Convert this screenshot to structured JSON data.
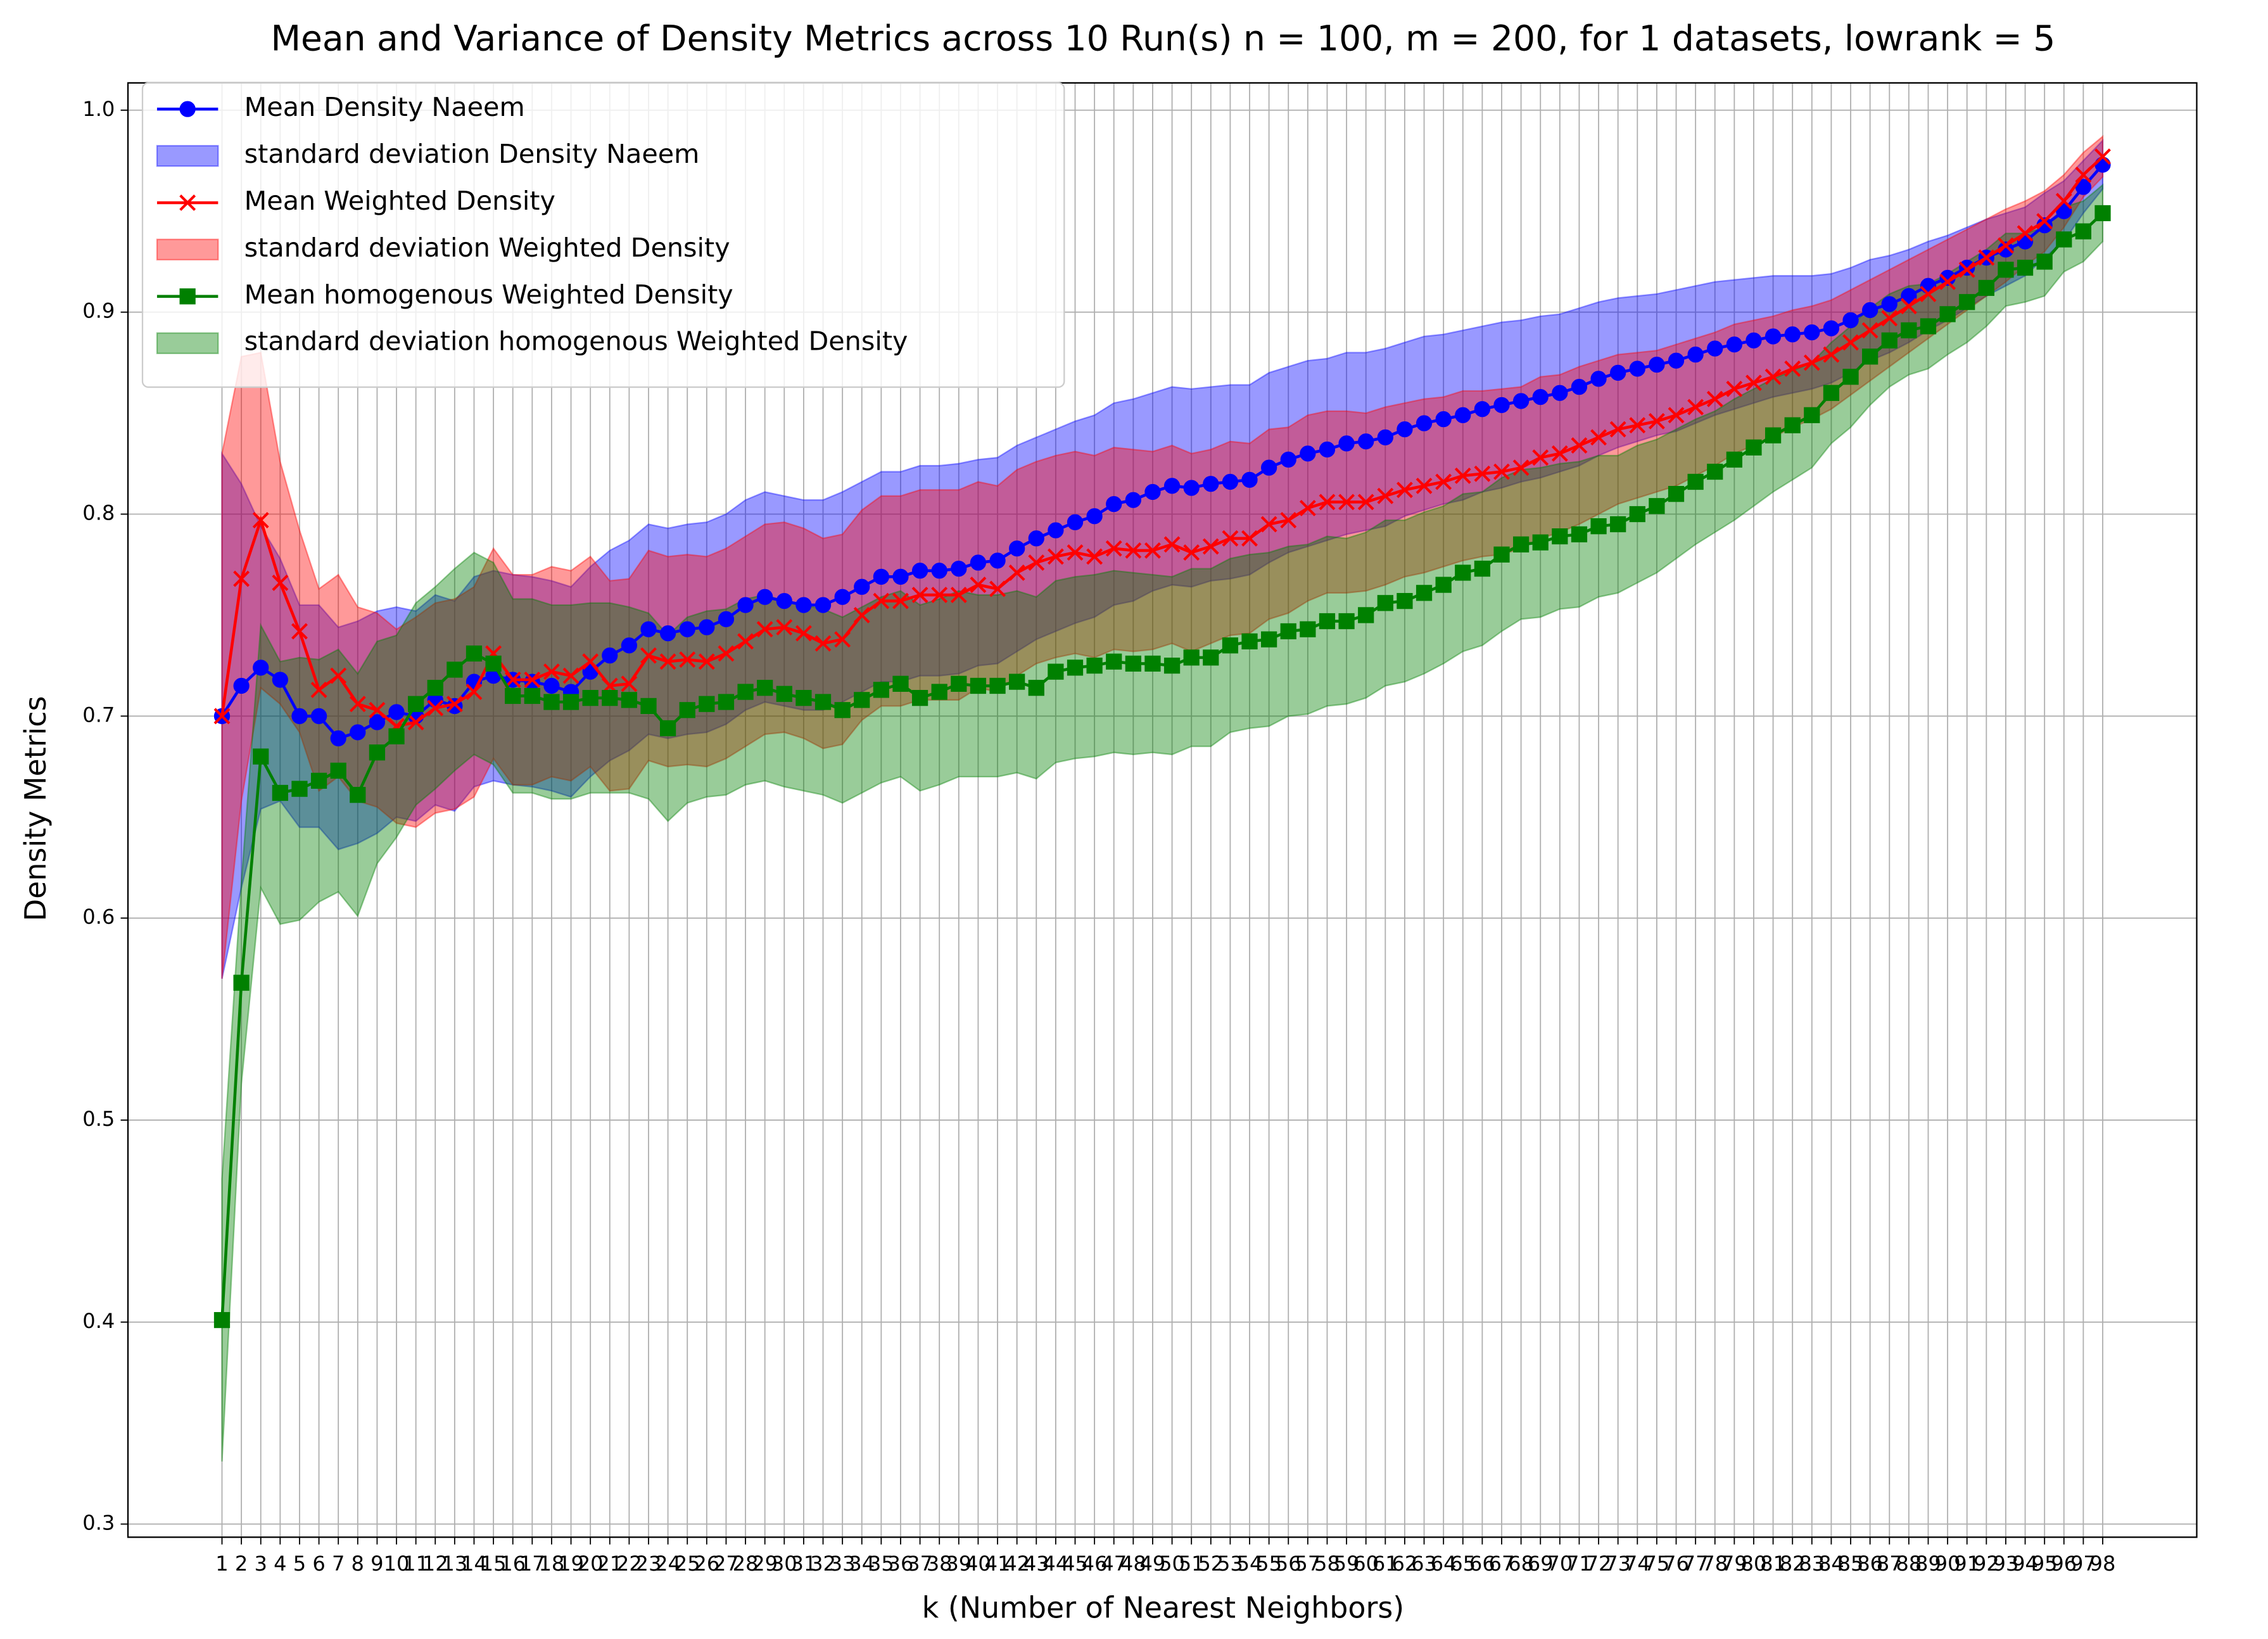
{
  "chart_data": {
    "type": "line",
    "title": "Mean and Variance of Density Metrics across 10 Run(s) n  = 100, m  = 200, for 1 datasets, lowrank = 5",
    "xlabel": "k (Number of Nearest Neighbors)",
    "ylabel": "Density Metrics",
    "x": [
      1,
      2,
      3,
      4,
      5,
      6,
      7,
      8,
      9,
      10,
      11,
      12,
      13,
      14,
      15,
      16,
      17,
      18,
      19,
      20,
      21,
      22,
      23,
      24,
      25,
      26,
      27,
      28,
      29,
      30,
      31,
      32,
      33,
      34,
      35,
      36,
      37,
      38,
      39,
      40,
      41,
      42,
      43,
      44,
      45,
      46,
      47,
      48,
      49,
      50,
      51,
      52,
      53,
      54,
      55,
      56,
      57,
      58,
      59,
      60,
      61,
      62,
      63,
      64,
      65,
      66,
      67,
      68,
      69,
      70,
      71,
      72,
      73,
      74,
      75,
      76,
      77,
      78,
      79,
      80,
      81,
      82,
      83,
      84,
      85,
      86,
      87,
      88,
      89,
      90,
      91,
      92,
      93,
      94,
      95,
      96,
      97,
      98
    ],
    "xticks": [
      1,
      2,
      3,
      4,
      5,
      6,
      7,
      8,
      9,
      10,
      11,
      12,
      13,
      14,
      15,
      16,
      17,
      18,
      19,
      20,
      21,
      22,
      23,
      24,
      25,
      26,
      27,
      28,
      29,
      30,
      31,
      32,
      33,
      34,
      35,
      36,
      37,
      38,
      39,
      40,
      41,
      42,
      43,
      44,
      45,
      46,
      47,
      48,
      49,
      50,
      51,
      52,
      53,
      54,
      55,
      56,
      57,
      58,
      59,
      60,
      61,
      62,
      63,
      64,
      65,
      66,
      67,
      68,
      69,
      70,
      71,
      72,
      73,
      74,
      75,
      76,
      77,
      78,
      79,
      80,
      81,
      82,
      83,
      84,
      85,
      86,
      87,
      88,
      89,
      90,
      91,
      92,
      93,
      94,
      95,
      96,
      97,
      98
    ],
    "xlim": [
      -3.85,
      102.85
    ],
    "ylim": [
      0.2935,
      1.0135
    ],
    "yticks": [
      0.3,
      0.4,
      0.5,
      0.6,
      0.7,
      0.8,
      0.9,
      {
        "value": 1,
        "label": "1.0"
      }
    ],
    "grid": true,
    "legend": "upper left",
    "series": [
      {
        "name": "Mean Density Naeem",
        "kind": "line",
        "color": "#0000ff",
        "marker": "circle",
        "values": [
          0.7,
          0.715,
          0.724,
          0.718,
          0.7,
          0.7,
          0.689,
          0.692,
          0.697,
          0.702,
          0.7,
          0.708,
          0.705,
          0.717,
          0.72,
          0.718,
          0.717,
          0.715,
          0.712,
          0.722,
          0.73,
          0.735,
          0.743,
          0.741,
          0.743,
          0.744,
          0.748,
          0.755,
          0.759,
          0.757,
          0.755,
          0.755,
          0.759,
          0.764,
          0.769,
          0.769,
          0.772,
          0.772,
          0.773,
          0.776,
          0.777,
          0.783,
          0.788,
          0.792,
          0.796,
          0.799,
          0.805,
          0.807,
          0.811,
          0.814,
          0.813,
          0.815,
          0.816,
          0.817,
          0.823,
          0.827,
          0.83,
          0.832,
          0.835,
          0.836,
          0.838,
          0.842,
          0.845,
          0.847,
          0.849,
          0.852,
          0.854,
          0.856,
          0.858,
          0.86,
          0.863,
          0.867,
          0.87,
          0.872,
          0.874,
          0.876,
          0.879,
          0.882,
          0.884,
          0.886,
          0.888,
          0.889,
          0.89,
          0.892,
          0.896,
          0.901,
          0.904,
          0.908,
          0.913,
          0.917,
          0.922,
          0.927,
          0.931,
          0.935,
          0.943,
          0.95,
          0.962,
          0.973
        ]
      },
      {
        "name": "standard deviation Density Naeem",
        "kind": "band",
        "color": "#0000ff",
        "values": [
          0.13,
          0.1,
          0.07,
          0.06,
          0.055,
          0.055,
          0.055,
          0.055,
          0.055,
          0.052,
          0.052,
          0.052,
          0.052,
          0.052,
          0.052,
          0.052,
          0.052,
          0.052,
          0.052,
          0.052,
          0.052,
          0.052,
          0.052,
          0.052,
          0.052,
          0.052,
          0.052,
          0.052,
          0.052,
          0.052,
          0.052,
          0.052,
          0.052,
          0.052,
          0.052,
          0.052,
          0.052,
          0.052,
          0.052,
          0.051,
          0.051,
          0.051,
          0.05,
          0.05,
          0.05,
          0.05,
          0.05,
          0.05,
          0.049,
          0.049,
          0.049,
          0.048,
          0.048,
          0.047,
          0.047,
          0.046,
          0.046,
          0.045,
          0.045,
          0.044,
          0.044,
          0.043,
          0.043,
          0.042,
          0.042,
          0.041,
          0.041,
          0.04,
          0.04,
          0.039,
          0.039,
          0.038,
          0.037,
          0.036,
          0.035,
          0.035,
          0.034,
          0.033,
          0.032,
          0.031,
          0.03,
          0.029,
          0.028,
          0.027,
          0.026,
          0.025,
          0.024,
          0.023,
          0.022,
          0.021,
          0.02,
          0.019,
          0.018,
          0.017,
          0.016,
          0.015,
          0.013,
          0.012
        ]
      },
      {
        "name": "Mean Weighted Density",
        "kind": "line",
        "color": "#ff0000",
        "marker": "x",
        "values": [
          0.7,
          0.768,
          0.797,
          0.766,
          0.742,
          0.713,
          0.72,
          0.706,
          0.703,
          0.695,
          0.697,
          0.704,
          0.706,
          0.712,
          0.731,
          0.718,
          0.718,
          0.722,
          0.72,
          0.727,
          0.715,
          0.716,
          0.73,
          0.727,
          0.728,
          0.727,
          0.731,
          0.737,
          0.743,
          0.744,
          0.741,
          0.736,
          0.738,
          0.75,
          0.757,
          0.757,
          0.76,
          0.76,
          0.76,
          0.765,
          0.763,
          0.771,
          0.776,
          0.779,
          0.781,
          0.779,
          0.783,
          0.782,
          0.782,
          0.785,
          0.781,
          0.784,
          0.788,
          0.788,
          0.795,
          0.797,
          0.803,
          0.806,
          0.806,
          0.806,
          0.809,
          0.812,
          0.814,
          0.816,
          0.819,
          0.82,
          0.821,
          0.823,
          0.828,
          0.83,
          0.834,
          0.838,
          0.842,
          0.844,
          0.846,
          0.849,
          0.853,
          0.857,
          0.862,
          0.865,
          0.868,
          0.872,
          0.875,
          0.879,
          0.885,
          0.891,
          0.897,
          0.903,
          0.909,
          0.915,
          0.921,
          0.927,
          0.933,
          0.939,
          0.945,
          0.955,
          0.968,
          0.977
        ]
      },
      {
        "name": "standard deviation Weighted Density",
        "kind": "band",
        "color": "#ff0000",
        "values": [
          0.13,
          0.11,
          0.083,
          0.06,
          0.05,
          0.05,
          0.05,
          0.048,
          0.048,
          0.048,
          0.052,
          0.052,
          0.052,
          0.052,
          0.052,
          0.052,
          0.052,
          0.052,
          0.052,
          0.052,
          0.052,
          0.052,
          0.052,
          0.052,
          0.052,
          0.052,
          0.052,
          0.052,
          0.052,
          0.052,
          0.052,
          0.052,
          0.052,
          0.052,
          0.052,
          0.052,
          0.052,
          0.052,
          0.052,
          0.051,
          0.051,
          0.051,
          0.05,
          0.05,
          0.05,
          0.05,
          0.05,
          0.05,
          0.049,
          0.049,
          0.049,
          0.048,
          0.048,
          0.047,
          0.047,
          0.046,
          0.046,
          0.045,
          0.045,
          0.044,
          0.044,
          0.043,
          0.043,
          0.042,
          0.042,
          0.041,
          0.041,
          0.04,
          0.04,
          0.039,
          0.039,
          0.038,
          0.037,
          0.036,
          0.035,
          0.035,
          0.034,
          0.033,
          0.032,
          0.031,
          0.03,
          0.029,
          0.028,
          0.027,
          0.026,
          0.025,
          0.024,
          0.023,
          0.022,
          0.021,
          0.02,
          0.019,
          0.018,
          0.016,
          0.015,
          0.013,
          0.011,
          0.01
        ]
      },
      {
        "name": "Mean homogenous Weighted Density",
        "kind": "line",
        "color": "#008000",
        "marker": "square",
        "values": [
          0.401,
          0.568,
          0.68,
          0.662,
          0.664,
          0.668,
          0.673,
          0.661,
          0.682,
          0.69,
          0.706,
          0.714,
          0.723,
          0.731,
          0.726,
          0.71,
          0.71,
          0.707,
          0.707,
          0.709,
          0.709,
          0.708,
          0.705,
          0.694,
          0.703,
          0.706,
          0.707,
          0.712,
          0.714,
          0.711,
          0.709,
          0.707,
          0.703,
          0.708,
          0.713,
          0.716,
          0.709,
          0.712,
          0.716,
          0.715,
          0.715,
          0.717,
          0.714,
          0.722,
          0.724,
          0.725,
          0.727,
          0.726,
          0.726,
          0.725,
          0.729,
          0.729,
          0.735,
          0.737,
          0.738,
          0.742,
          0.743,
          0.747,
          0.747,
          0.75,
          0.756,
          0.757,
          0.761,
          0.765,
          0.771,
          0.773,
          0.78,
          0.785,
          0.786,
          0.789,
          0.79,
          0.794,
          0.795,
          0.8,
          0.804,
          0.81,
          0.816,
          0.821,
          0.827,
          0.833,
          0.839,
          0.844,
          0.849,
          0.86,
          0.868,
          0.878,
          0.886,
          0.891,
          0.893,
          0.899,
          0.905,
          0.912,
          0.921,
          0.922,
          0.925,
          0.936,
          0.94,
          0.949
        ]
      },
      {
        "name": "standard deviation homogenous Weighted Density",
        "kind": "band",
        "color": "#008000",
        "values": [
          0.07,
          0.05,
          0.065,
          0.065,
          0.065,
          0.06,
          0.06,
          0.06,
          0.055,
          0.05,
          0.05,
          0.05,
          0.05,
          0.05,
          0.05,
          0.048,
          0.048,
          0.048,
          0.048,
          0.047,
          0.047,
          0.046,
          0.046,
          0.046,
          0.046,
          0.046,
          0.046,
          0.046,
          0.046,
          0.046,
          0.046,
          0.046,
          0.046,
          0.046,
          0.046,
          0.046,
          0.046,
          0.046,
          0.046,
          0.045,
          0.045,
          0.045,
          0.045,
          0.045,
          0.045,
          0.045,
          0.045,
          0.045,
          0.044,
          0.044,
          0.044,
          0.044,
          0.043,
          0.043,
          0.043,
          0.042,
          0.042,
          0.042,
          0.041,
          0.041,
          0.041,
          0.04,
          0.04,
          0.039,
          0.039,
          0.038,
          0.038,
          0.037,
          0.037,
          0.036,
          0.036,
          0.035,
          0.034,
          0.034,
          0.033,
          0.032,
          0.031,
          0.03,
          0.03,
          0.029,
          0.028,
          0.027,
          0.026,
          0.025,
          0.025,
          0.024,
          0.023,
          0.022,
          0.021,
          0.02,
          0.02,
          0.019,
          0.018,
          0.017,
          0.017,
          0.016,
          0.015,
          0.014
        ]
      }
    ]
  }
}
